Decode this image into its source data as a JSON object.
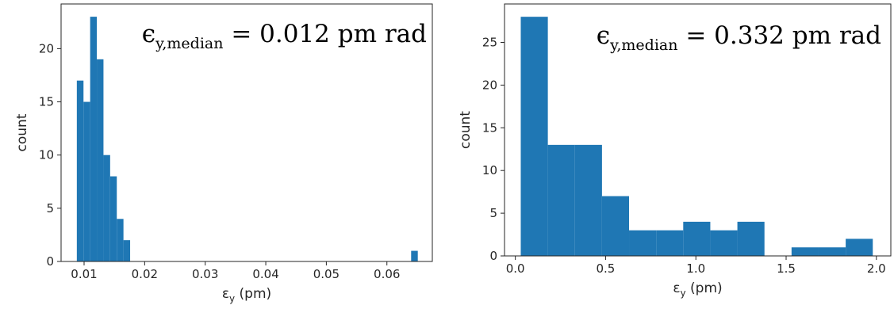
{
  "chart_data": [
    {
      "type": "histogram",
      "annotation": {
        "symbol": "ϵ",
        "subscript": "y,median",
        "rest": " = 0.012 pm rad"
      },
      "xlabel": {
        "symbol": "ε",
        "subscript": "y",
        "rest": " (pm)"
      },
      "ylabel": "count",
      "xlim": [
        0.0062,
        0.0675
      ],
      "ylim": [
        0,
        24.2
      ],
      "xticks": [
        "0.01",
        "0.02",
        "0.03",
        "0.04",
        "0.05",
        "0.06"
      ],
      "yticks": [
        "0",
        "5",
        "10",
        "15",
        "20"
      ],
      "grid": false,
      "bar_color": "#1f77b4",
      "bin_edges": [
        0.0088,
        0.0099,
        0.011,
        0.0121,
        0.0132,
        0.0143,
        0.0154,
        0.0165,
        0.0176,
        0.0187,
        0.064,
        0.0651
      ],
      "counts": [
        17,
        15,
        23,
        19,
        10,
        8,
        4,
        2,
        0,
        0,
        1
      ]
    },
    {
      "type": "histogram",
      "annotation": {
        "symbol": "ϵ",
        "subscript": "y,median",
        "rest": " = 0.332 pm rad"
      },
      "xlabel": {
        "symbol": "ε",
        "subscript": "y",
        "rest": " (pm)"
      },
      "ylabel": "count",
      "xlim": [
        -0.06,
        2.08
      ],
      "ylim": [
        0,
        29.5
      ],
      "xticks": [
        "0.0",
        "0.5",
        "1.0",
        "1.5",
        "2.0"
      ],
      "yticks": [
        "0",
        "5",
        "10",
        "15",
        "20",
        "25"
      ],
      "grid": false,
      "bar_color": "#1f77b4",
      "bin_edges": [
        0.03,
        0.18,
        0.33,
        0.48,
        0.63,
        0.78,
        0.93,
        1.08,
        1.23,
        1.38,
        1.53,
        1.68,
        1.83,
        1.98
      ],
      "counts": [
        28,
        13,
        13,
        7,
        3,
        3,
        4,
        3,
        4,
        0,
        1,
        1,
        2
      ]
    }
  ]
}
